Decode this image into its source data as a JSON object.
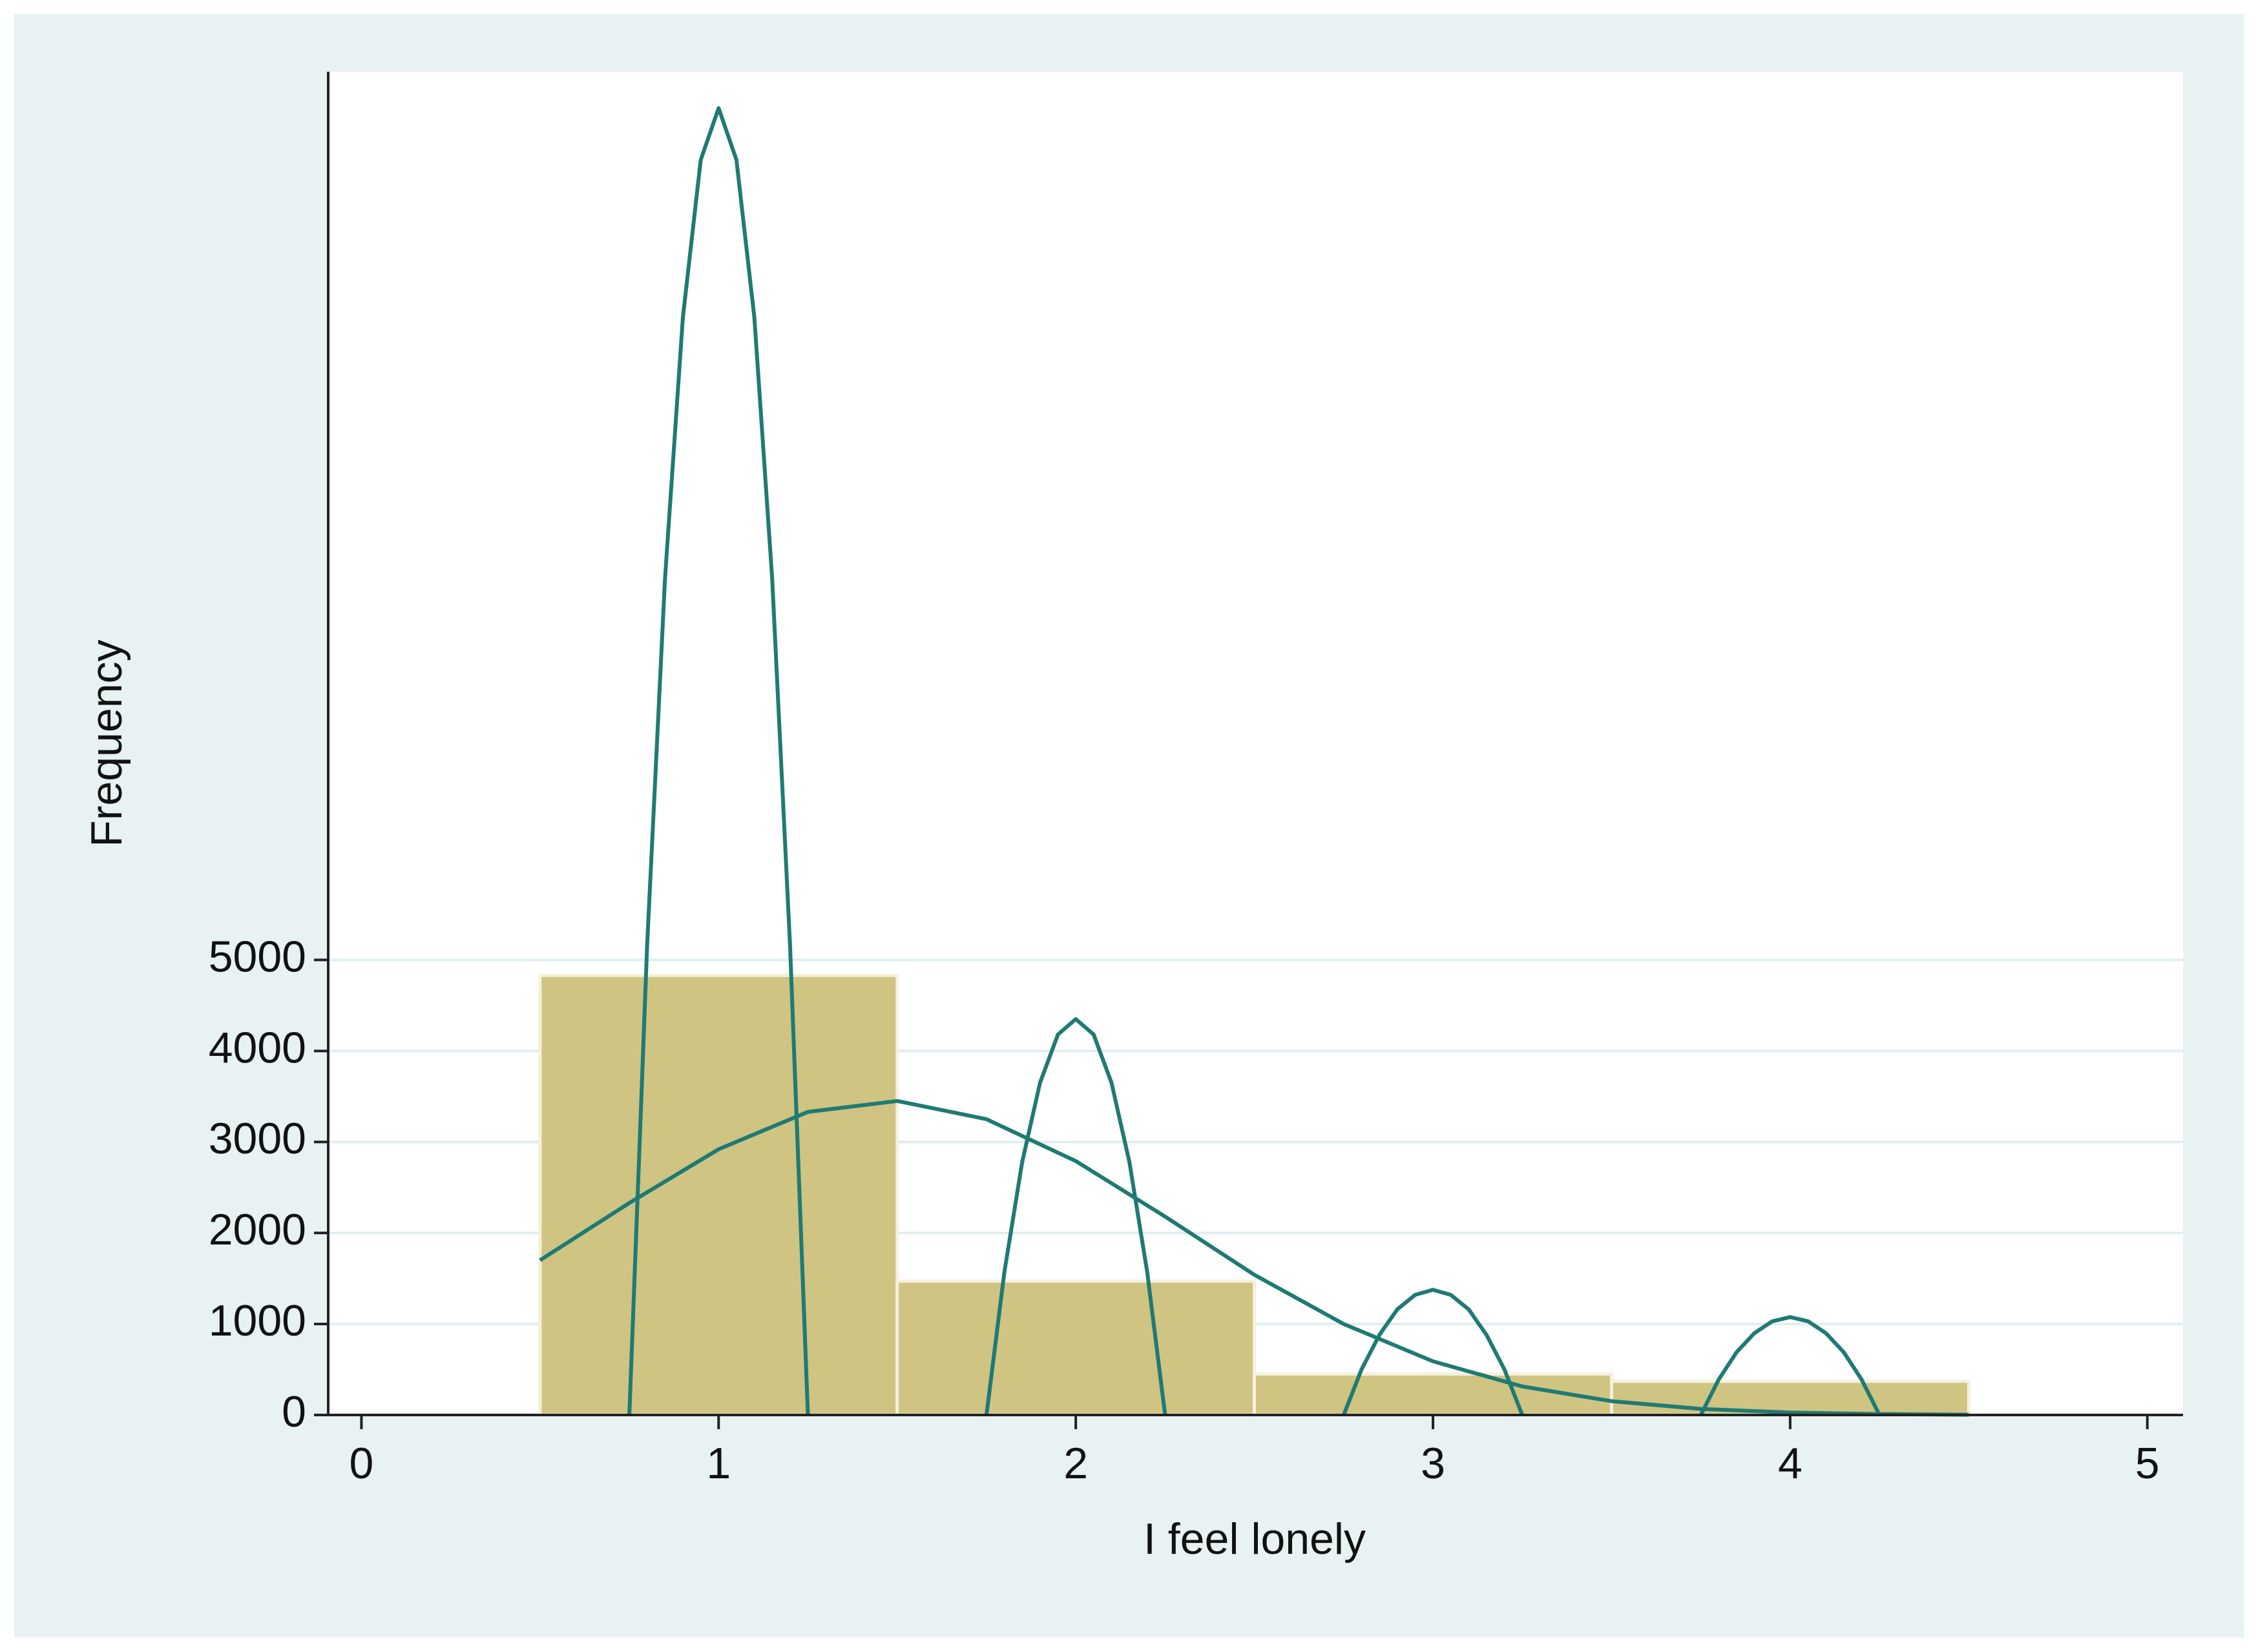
{
  "chart_data": {
    "type": "histogram",
    "x_label": "I feel lonely",
    "y_label": "Frequency",
    "bins": [
      0.5,
      1.5,
      2.5,
      3.5,
      4.5
    ],
    "values": [
      4830,
      1470,
      450,
      370
    ],
    "color": "#cfc481",
    "xlim": [
      -0.093,
      5.1
    ],
    "xticks": [
      0,
      1,
      2,
      3,
      4,
      5
    ],
    "ylim": [
      0,
      14760
    ],
    "yticks": [
      0,
      1000,
      2000,
      3000,
      4000,
      5000
    ],
    "grid": true,
    "series": [
      {
        "color": "#1f7a74",
        "x": [
          0.5,
          0.75,
          1.0,
          1.25,
          1.5,
          1.75,
          2.0,
          2.25,
          2.5,
          2.75,
          3.0,
          3.25,
          3.5,
          3.75,
          4.0,
          4.25,
          4.5
        ],
        "values": [
          1700,
          2330,
          2920,
          3330,
          3450,
          3250,
          2790,
          2180,
          1540,
          1000,
          590,
          314,
          152,
          67,
          27,
          10,
          3
        ]
      },
      {
        "color": "#1f7a74",
        "x": [
          0.75,
          0.8,
          0.85,
          0.9,
          0.95,
          1.0,
          1.05,
          1.1,
          1.15,
          1.2,
          1.25
        ],
        "values": [
          0,
          5170,
          9190,
          12060,
          13790,
          14360,
          13790,
          12060,
          9190,
          5170,
          0
        ]
      },
      {
        "color": "#1f7a74",
        "x": [
          1.75,
          1.8,
          1.85,
          1.9,
          1.95,
          2.0,
          2.05,
          2.1,
          2.15,
          2.2,
          2.25
        ],
        "values": [
          0,
          1570,
          2780,
          3650,
          4180,
          4350,
          4180,
          3650,
          2780,
          1570,
          0
        ]
      },
      {
        "color": "#1f7a74",
        "x": [
          2.75,
          2.8,
          2.85,
          2.9,
          2.95,
          3.0,
          3.05,
          3.1,
          3.15,
          3.2,
          3.25
        ],
        "values": [
          0,
          500,
          880,
          1160,
          1320,
          1376,
          1320,
          1160,
          880,
          500,
          0
        ]
      },
      {
        "color": "#1f7a74",
        "x": [
          3.75,
          3.8,
          3.85,
          3.9,
          3.95,
          4.0,
          4.05,
          4.1,
          4.15,
          4.2,
          4.25
        ],
        "values": [
          0,
          390,
          690,
          900,
          1030,
          1076,
          1030,
          900,
          690,
          390,
          0
        ]
      }
    ]
  }
}
